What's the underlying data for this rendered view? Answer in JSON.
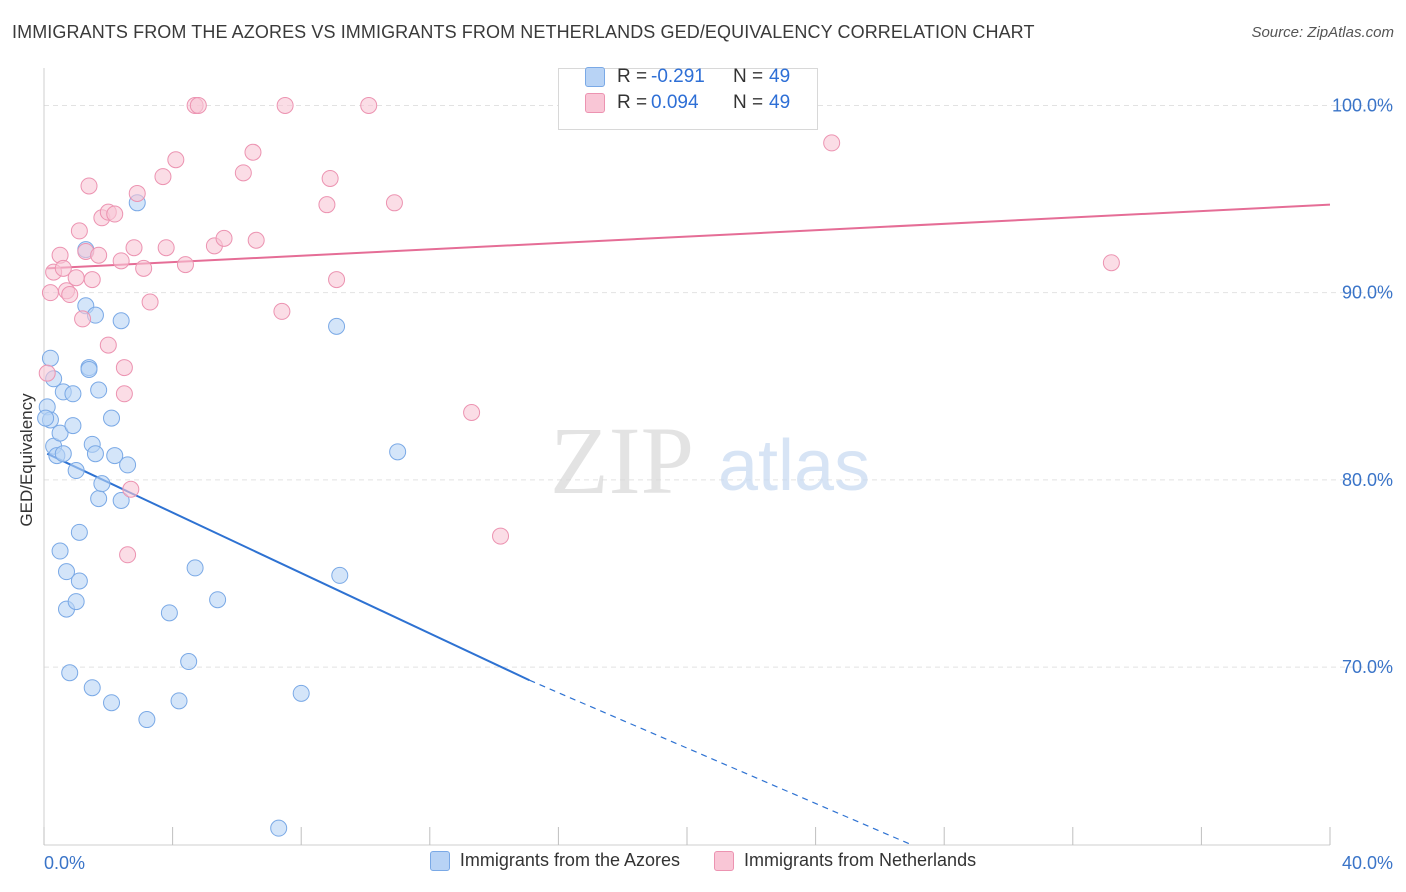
{
  "title": "IMMIGRANTS FROM THE AZORES VS IMMIGRANTS FROM NETHERLANDS GED/EQUIVALENCY CORRELATION CHART",
  "source": "Source: ZipAtlas.com",
  "watermark": {
    "zip": "ZIP",
    "atlas": "atlas"
  },
  "colors": {
    "blue_fill": "#b8d3f5",
    "blue_stroke": "#7aa9e6",
    "blue_line": "#2e72d2",
    "pink_fill": "#f9c6d6",
    "pink_stroke": "#ec93b1",
    "pink_line": "#e56d96",
    "axis_label": "#3a74c8"
  },
  "stats": [
    {
      "swatch": "blue",
      "r_label": "R =",
      "r_value": "-0.291",
      "n_label": "N =",
      "n_value": "49"
    },
    {
      "swatch": "pink",
      "r_label": "R =",
      "r_value": "0.094",
      "n_label": "N =",
      "n_value": "49"
    }
  ],
  "chart_data": {
    "type": "scatter",
    "title": "IMMIGRANTS FROM THE AZORES VS IMMIGRANTS FROM NETHERLANDS GED/EQUIVALENCY CORRELATION CHART",
    "xlabel": "",
    "ylabel": "GED/Equivalency",
    "xlim": [
      0,
      40
    ],
    "ylim": [
      60.5,
      102
    ],
    "x_tick_labels": [
      {
        "value": 0,
        "label": "0.0%"
      },
      {
        "value": 40,
        "label": "40.0%"
      }
    ],
    "y_tick_labels": [
      {
        "value": 100,
        "label": "100.0%"
      },
      {
        "value": 90,
        "label": "90.0%"
      },
      {
        "value": 80,
        "label": "80.0%"
      },
      {
        "value": 70,
        "label": "70.0%"
      }
    ],
    "x_minor_ticks": [
      0,
      4,
      8,
      12,
      16,
      20,
      24,
      28,
      32,
      36,
      40
    ],
    "grid": true,
    "legend_position": "bottom",
    "series": [
      {
        "name": "Immigrants from the Azores",
        "color": "blue",
        "points": [
          [
            0.1,
            83.9
          ],
          [
            0.2,
            83.2
          ],
          [
            0.2,
            86.5
          ],
          [
            0.3,
            85.4
          ],
          [
            0.3,
            81.8
          ],
          [
            0.4,
            81.3
          ],
          [
            0.5,
            82.5
          ],
          [
            0.5,
            76.2
          ],
          [
            0.6,
            81.4
          ],
          [
            0.6,
            84.7
          ],
          [
            0.7,
            75.1
          ],
          [
            0.7,
            73.1
          ],
          [
            0.8,
            69.7
          ],
          [
            0.9,
            82.9
          ],
          [
            0.9,
            84.6
          ],
          [
            1.0,
            80.5
          ],
          [
            1.0,
            73.5
          ],
          [
            1.1,
            77.2
          ],
          [
            1.1,
            74.6
          ],
          [
            1.3,
            89.3
          ],
          [
            1.3,
            92.3
          ],
          [
            1.4,
            86.0
          ],
          [
            1.4,
            85.9
          ],
          [
            1.5,
            81.9
          ],
          [
            1.5,
            68.9
          ],
          [
            1.6,
            81.4
          ],
          [
            1.6,
            88.8
          ],
          [
            1.7,
            79.0
          ],
          [
            1.7,
            84.8
          ],
          [
            1.8,
            79.8
          ],
          [
            2.1,
            83.3
          ],
          [
            2.1,
            68.1
          ],
          [
            2.2,
            81.3
          ],
          [
            2.4,
            78.9
          ],
          [
            2.4,
            88.5
          ],
          [
            2.6,
            80.8
          ],
          [
            2.9,
            94.8
          ],
          [
            3.2,
            67.2
          ],
          [
            3.9,
            72.9
          ],
          [
            4.2,
            68.2
          ],
          [
            4.5,
            70.3
          ],
          [
            4.7,
            75.3
          ],
          [
            5.4,
            73.6
          ],
          [
            7.3,
            61.4
          ],
          [
            8.0,
            68.6
          ],
          [
            9.1,
            88.2
          ],
          [
            9.2,
            74.9
          ],
          [
            11.0,
            81.5
          ],
          [
            0.05,
            83.3
          ]
        ]
      },
      {
        "name": "Immigrants from Netherlands",
        "color": "pink",
        "points": [
          [
            0.1,
            85.7
          ],
          [
            0.2,
            90.0
          ],
          [
            0.3,
            91.1
          ],
          [
            0.5,
            92.0
          ],
          [
            0.6,
            91.3
          ],
          [
            0.7,
            90.1
          ],
          [
            0.8,
            89.9
          ],
          [
            1.0,
            90.8
          ],
          [
            1.1,
            93.3
          ],
          [
            1.2,
            88.6
          ],
          [
            1.3,
            92.2
          ],
          [
            1.4,
            95.7
          ],
          [
            1.5,
            90.7
          ],
          [
            1.7,
            92.0
          ],
          [
            1.8,
            94.0
          ],
          [
            2.0,
            94.3
          ],
          [
            2.0,
            87.2
          ],
          [
            2.2,
            94.2
          ],
          [
            2.4,
            91.7
          ],
          [
            2.5,
            86.0
          ],
          [
            2.5,
            84.6
          ],
          [
            2.6,
            76.0
          ],
          [
            2.8,
            92.4
          ],
          [
            2.9,
            95.3
          ],
          [
            3.1,
            91.3
          ],
          [
            3.3,
            89.5
          ],
          [
            3.7,
            96.2
          ],
          [
            3.8,
            92.4
          ],
          [
            4.1,
            97.1
          ],
          [
            4.4,
            91.5
          ],
          [
            4.7,
            100.0
          ],
          [
            4.8,
            100.0
          ],
          [
            5.3,
            92.5
          ],
          [
            5.6,
            92.9
          ],
          [
            6.2,
            96.4
          ],
          [
            6.5,
            97.5
          ],
          [
            6.6,
            92.8
          ],
          [
            7.4,
            89.0
          ],
          [
            7.5,
            100.0
          ],
          [
            8.8,
            94.7
          ],
          [
            8.9,
            96.1
          ],
          [
            9.1,
            90.7
          ],
          [
            10.1,
            100.0
          ],
          [
            10.9,
            94.8
          ],
          [
            13.3,
            83.6
          ],
          [
            14.2,
            77.0
          ],
          [
            24.5,
            98.0
          ],
          [
            33.2,
            91.6
          ],
          [
            2.7,
            79.5
          ]
        ]
      }
    ],
    "trend_lines": [
      {
        "series": "Immigrants from the Azores",
        "solid": [
          [
            0.1,
            81.4
          ],
          [
            15.1,
            69.3
          ]
        ],
        "dashed": [
          [
            15.1,
            69.3
          ],
          [
            27.0,
            60.5
          ]
        ]
      },
      {
        "series": "Immigrants from Netherlands",
        "solid": [
          [
            0.1,
            91.3
          ],
          [
            40.0,
            94.7
          ]
        ]
      }
    ]
  }
}
